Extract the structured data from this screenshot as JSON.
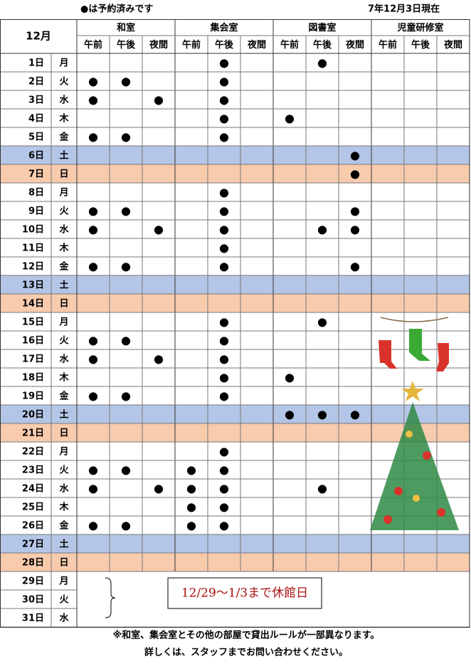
{
  "header": {
    "legend": "●は予約済みです",
    "as_of": "7年12月3日現在",
    "month": "12月"
  },
  "mark": "●",
  "rooms": [
    {
      "name": "和室",
      "slots": [
        "午前",
        "午後",
        "夜間"
      ]
    },
    {
      "name": "集会室",
      "slots": [
        "午前",
        "午後",
        "夜間"
      ]
    },
    {
      "name": "図書室",
      "slots": [
        "午前",
        "午後",
        "夜間"
      ]
    },
    {
      "name": "児童研修室",
      "slots": [
        "午前",
        "午後",
        "夜間"
      ]
    }
  ],
  "rows": [
    {
      "day": "1日",
      "weekday": "月",
      "booked": [
        4,
        7
      ]
    },
    {
      "day": "2日",
      "weekday": "火",
      "booked": [
        0,
        1,
        4
      ]
    },
    {
      "day": "3日",
      "weekday": "水",
      "booked": [
        0,
        2,
        4
      ]
    },
    {
      "day": "4日",
      "weekday": "木",
      "booked": [
        4,
        6
      ]
    },
    {
      "day": "5日",
      "weekday": "金",
      "booked": [
        0,
        1,
        4
      ]
    },
    {
      "day": "6日",
      "weekday": "土",
      "booked": [
        8
      ],
      "fill": "#b4c6e7"
    },
    {
      "day": "7日",
      "weekday": "日",
      "booked": [
        8
      ],
      "fill": "#f8cbad"
    },
    {
      "day": "8日",
      "weekday": "月",
      "booked": [
        4
      ]
    },
    {
      "day": "9日",
      "weekday": "火",
      "booked": [
        0,
        1,
        4,
        8
      ]
    },
    {
      "day": "10日",
      "weekday": "水",
      "booked": [
        0,
        2,
        4,
        7,
        8
      ]
    },
    {
      "day": "11日",
      "weekday": "木",
      "booked": [
        4
      ]
    },
    {
      "day": "12日",
      "weekday": "金",
      "booked": [
        0,
        1,
        4,
        8
      ]
    },
    {
      "day": "13日",
      "weekday": "土",
      "booked": [],
      "fill": "#b4c6e7"
    },
    {
      "day": "14日",
      "weekday": "日",
      "booked": [],
      "fill": "#f8cbad"
    },
    {
      "day": "15日",
      "weekday": "月",
      "booked": [
        4,
        7
      ]
    },
    {
      "day": "16日",
      "weekday": "火",
      "booked": [
        0,
        1,
        4
      ]
    },
    {
      "day": "17日",
      "weekday": "水",
      "booked": [
        0,
        2,
        4
      ]
    },
    {
      "day": "18日",
      "weekday": "木",
      "booked": [
        4,
        6
      ]
    },
    {
      "day": "19日",
      "weekday": "金",
      "booked": [
        0,
        1,
        4
      ]
    },
    {
      "day": "20日",
      "weekday": "土",
      "booked": [
        6,
        7,
        8
      ],
      "fill": "#b4c6e7"
    },
    {
      "day": "21日",
      "weekday": "日",
      "booked": [],
      "fill": "#f8cbad"
    },
    {
      "day": "22日",
      "weekday": "月",
      "booked": [
        4
      ]
    },
    {
      "day": "23日",
      "weekday": "火",
      "booked": [
        0,
        1,
        3,
        4
      ]
    },
    {
      "day": "24日",
      "weekday": "水",
      "booked": [
        0,
        2,
        3,
        4,
        7
      ]
    },
    {
      "day": "25日",
      "weekday": "木",
      "booked": [
        3,
        4
      ]
    },
    {
      "day": "26日",
      "weekday": "金",
      "booked": [
        0,
        1,
        3,
        4
      ]
    },
    {
      "day": "27日",
      "weekday": "土",
      "booked": [],
      "fill": "#b4c6e7"
    },
    {
      "day": "28日",
      "weekday": "日",
      "booked": [],
      "fill": "#f8cbad"
    },
    {
      "day": "29日",
      "weekday": "月",
      "closed": true
    },
    {
      "day": "30日",
      "weekday": "火",
      "closed": true
    },
    {
      "day": "31日",
      "weekday": "水",
      "closed": true
    }
  ],
  "closed_notice": "12/29～1/3まで休館日",
  "footer": [
    "※和室、集会室とその他の部屋で貸出ルールが一部異なります。",
    "詳しくは、スタッフまでお問い合わせください。"
  ]
}
